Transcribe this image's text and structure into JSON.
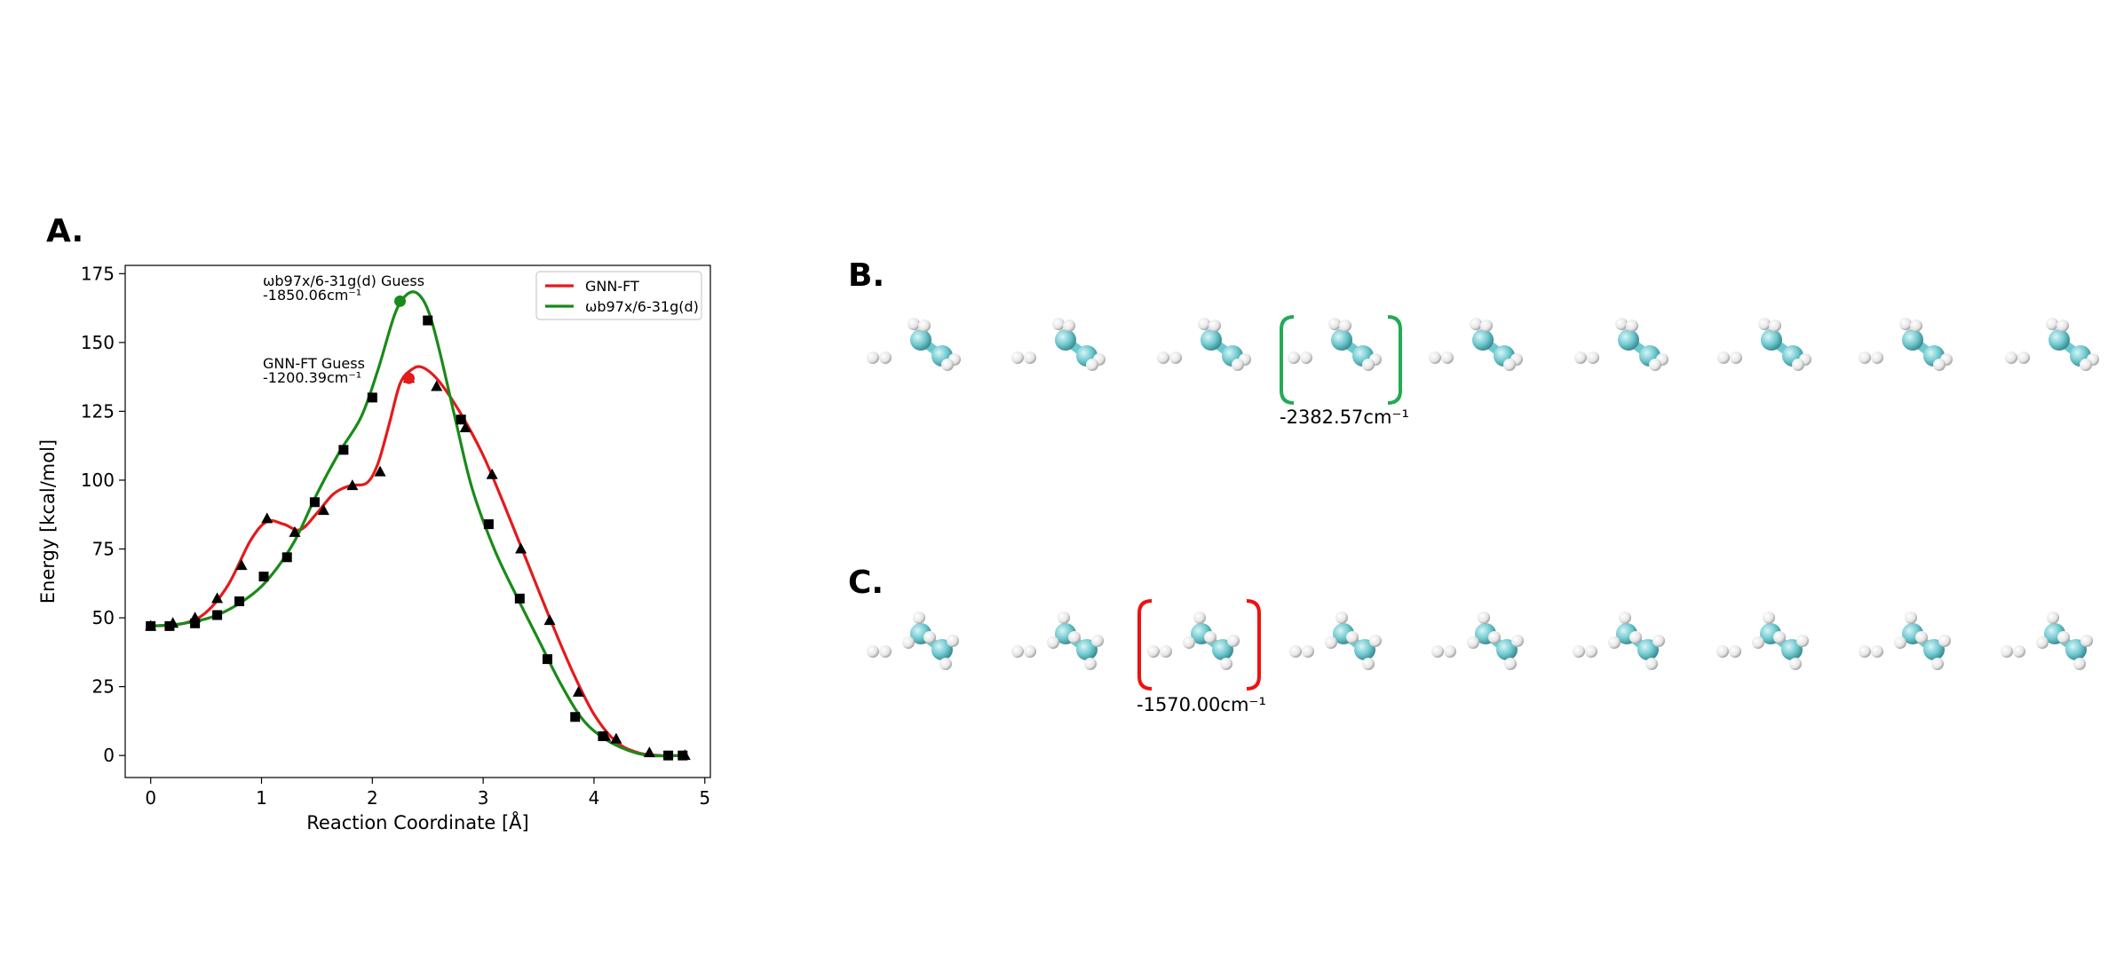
{
  "panels": {
    "a": "A.",
    "b": "B.",
    "c": "C."
  },
  "chart_data": {
    "type": "line",
    "xlabel": "Reaction Coordinate [Å]",
    "ylabel": "Energy [kcal/mol]",
    "xlim": [
      -0.23,
      5.05
    ],
    "ylim": [
      -8,
      178
    ],
    "xticks": [
      0,
      1,
      2,
      3,
      4,
      5
    ],
    "yticks": [
      0,
      25,
      50,
      75,
      100,
      125,
      150,
      175
    ],
    "legend_position": "top-right",
    "grid": false,
    "series": [
      {
        "name": "GNN-FT",
        "color": "#e41a1c",
        "marker": "triangle",
        "x": [
          0,
          0.2,
          0.4,
          0.6,
          0.82,
          1.05,
          1.3,
          1.56,
          1.82,
          2.07,
          2.33,
          2.58,
          2.84,
          3.08,
          3.34,
          3.6,
          3.86,
          4.1,
          4.2,
          4.5,
          4.82
        ],
        "y": [
          47,
          48,
          50,
          57,
          69,
          86,
          81,
          89,
          98,
          103,
          137,
          134,
          119,
          102,
          75,
          49,
          23,
          7,
          6,
          1,
          0
        ],
        "curve_x": [
          0,
          0.3,
          0.5,
          0.7,
          0.9,
          1.05,
          1.2,
          1.35,
          1.5,
          1.65,
          1.8,
          1.95,
          2.05,
          2.15,
          2.25,
          2.35,
          2.45,
          2.6,
          2.8,
          3.0,
          3.2,
          3.4,
          3.6,
          3.8,
          4.0,
          4.2,
          4.4,
          4.6,
          4.82
        ],
        "curve_y": [
          47,
          48,
          52,
          62,
          78,
          85,
          84,
          82,
          88,
          95,
          98,
          99,
          106,
          120,
          135,
          140,
          141,
          136,
          124,
          109,
          90,
          70,
          50,
          31,
          15,
          5,
          1,
          0,
          0
        ]
      },
      {
        "name": "ωb97x/6-31g(d)",
        "color": "#1a8a1a",
        "marker": "square",
        "x": [
          0,
          0.17,
          0.4,
          0.6,
          0.8,
          1.02,
          1.23,
          1.48,
          1.74,
          2.0,
          2.5,
          2.8,
          3.05,
          3.33,
          3.58,
          3.83,
          4.08,
          4.67,
          4.8
        ],
        "y": [
          47,
          47,
          48,
          51,
          56,
          65,
          72,
          92,
          111,
          130,
          158,
          122,
          84,
          57,
          35,
          14,
          7,
          0,
          0
        ],
        "curve_x": [
          0,
          0.3,
          0.6,
          0.9,
          1.1,
          1.3,
          1.5,
          1.7,
          1.9,
          2.05,
          2.2,
          2.3,
          2.4,
          2.5,
          2.6,
          2.75,
          2.9,
          3.1,
          3.3,
          3.5,
          3.7,
          3.9,
          4.1,
          4.3,
          4.5,
          4.8
        ],
        "curve_y": [
          47,
          48,
          51,
          58,
          66,
          78,
          95,
          110,
          123,
          140,
          160,
          167,
          168,
          162,
          148,
          122,
          97,
          75,
          58,
          42,
          26,
          13,
          6,
          2,
          0,
          0
        ]
      }
    ],
    "highlights": [
      {
        "series": "ωb97x/6-31g(d)",
        "x": 2.25,
        "y": 165,
        "label": "ωb97x/6-31g(d) Guess",
        "value": "-1850.06cm⁻¹"
      },
      {
        "series": "GNN-FT",
        "x": 2.33,
        "y": 137,
        "label": "GNN-FT Guess",
        "value": "-1200.39cm⁻¹"
      }
    ]
  },
  "molecules": {
    "row_b_frequency": "-2382.57cm⁻¹",
    "row_c_frequency": "-1570.00cm⁻¹",
    "carbon_color": "#6ec9cf",
    "hydrogen_color": "#e6e6e6",
    "row_b_bracket_color": "#22aa55",
    "row_c_bracket_color": "#ee1111"
  }
}
